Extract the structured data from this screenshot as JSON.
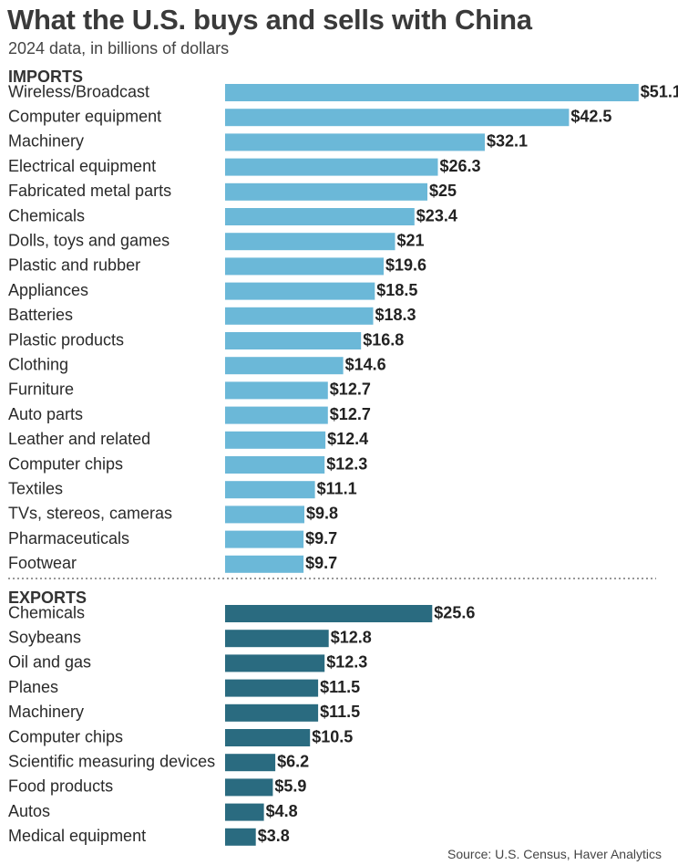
{
  "chart_data": {
    "type": "bar",
    "title": "What the U.S. buys and sells with China",
    "subtitle": "2024 data, in billions of dollars",
    "source": "Source: U.S. Census, Haver Analytics",
    "value_prefix": "$",
    "colors": {
      "imports": "#6bb8d8",
      "exports": "#2a6b80"
    },
    "groups": [
      {
        "name": "IMPORTS",
        "key": "imports",
        "categories": [
          "Wireless/Broadcast",
          "Computer equipment",
          "Machinery",
          "Electrical equipment",
          "Fabricated metal parts",
          "Chemicals",
          "Dolls, toys and games",
          "Plastic and rubber",
          "Appliances",
          "Batteries",
          "Plastic products",
          "Clothing",
          "Furniture",
          "Auto parts",
          "Leather and related",
          "Computer chips",
          "Textiles",
          "TVs, stereos, cameras",
          "Pharmaceuticals",
          "Footwear"
        ],
        "values": [
          51.1,
          42.5,
          32.1,
          26.3,
          25,
          23.4,
          21,
          19.6,
          18.5,
          18.3,
          16.8,
          14.6,
          12.7,
          12.7,
          12.4,
          12.3,
          11.1,
          9.8,
          9.7,
          9.7
        ]
      },
      {
        "name": "EXPORTS",
        "key": "exports",
        "categories": [
          "Chemicals",
          "Soybeans",
          "Oil and gas",
          "Planes",
          "Machinery",
          "Computer chips",
          "Scientific measuring devices",
          "Food products",
          "Autos",
          "Medical equipment"
        ],
        "values": [
          25.6,
          12.8,
          12.3,
          11.5,
          11.5,
          10.5,
          6.2,
          5.9,
          4.8,
          3.8
        ]
      }
    ]
  }
}
